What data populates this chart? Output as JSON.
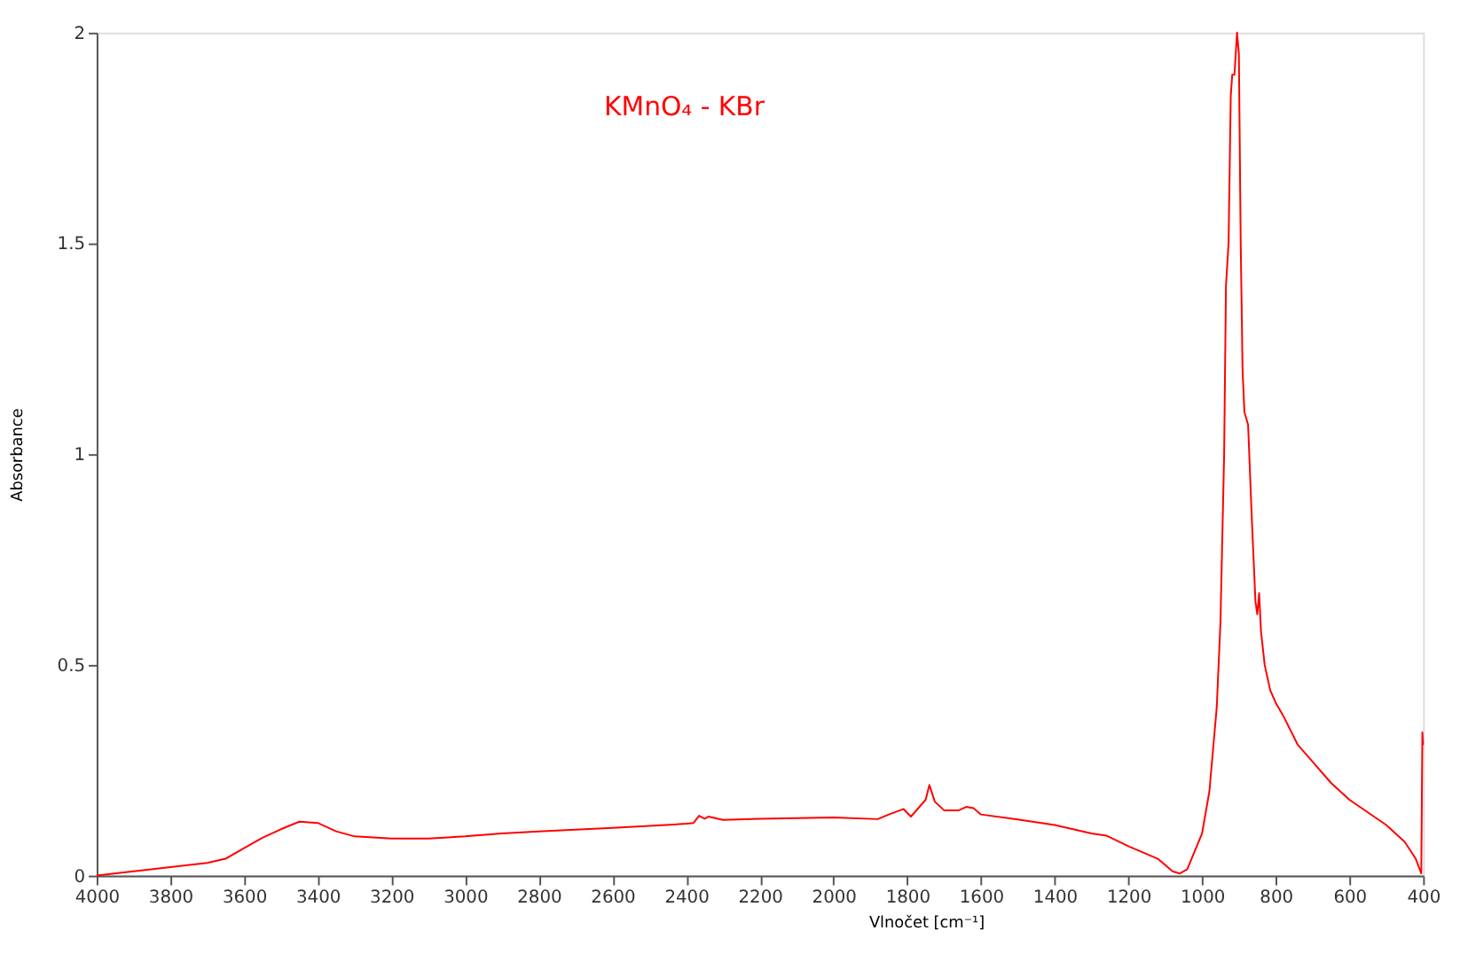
{
  "chart_data": {
    "type": "line",
    "title": "KMnO₄ - KBr",
    "xlabel": "Vlnočet [cm⁻¹]",
    "ylabel": "Absorbance",
    "xlim": [
      4000,
      400
    ],
    "xticks": [
      4000,
      3800,
      3600,
      3400,
      3200,
      3000,
      2800,
      2600,
      2400,
      2200,
      2000,
      1800,
      1600,
      1400,
      1200,
      1000,
      800,
      600,
      400
    ],
    "ylim": [
      0,
      2
    ],
    "yticks": [
      0,
      0.5,
      1,
      1.5,
      2
    ],
    "grid": false,
    "legend": false,
    "x": [
      4000,
      3800,
      3700,
      3650,
      3600,
      3550,
      3500,
      3450,
      3400,
      3350,
      3300,
      3200,
      3100,
      3000,
      2900,
      2800,
      2600,
      2400,
      2380,
      2365,
      2350,
      2340,
      2300,
      2200,
      2000,
      1880,
      1850,
      1810,
      1790,
      1770,
      1750,
      1740,
      1725,
      1700,
      1660,
      1640,
      1620,
      1600,
      1500,
      1400,
      1300,
      1260,
      1200,
      1120,
      1080,
      1060,
      1040,
      1000,
      980,
      960,
      950,
      940,
      935,
      928,
      922,
      918,
      912,
      905,
      900,
      895,
      890,
      885,
      875,
      865,
      855,
      850,
      845,
      840,
      830,
      815,
      800,
      780,
      740,
      700,
      650,
      600,
      550,
      500,
      450,
      420,
      405,
      402,
      400
    ],
    "series": [
      {
        "color": "#ff0000",
        "values": [
          0,
          0.02,
          0.03,
          0.04,
          0.065,
          0.09,
          0.11,
          0.128,
          0.125,
          0.105,
          0.093,
          0.088,
          0.088,
          0.093,
          0.1,
          0.105,
          0.113,
          0.123,
          0.125,
          0.142,
          0.135,
          0.14,
          0.132,
          0.135,
          0.138,
          0.134,
          0.145,
          0.158,
          0.14,
          0.16,
          0.18,
          0.215,
          0.175,
          0.155,
          0.155,
          0.163,
          0.16,
          0.145,
          0.133,
          0.12,
          0.1,
          0.095,
          0.07,
          0.04,
          0.01,
          0.005,
          0.015,
          0.1,
          0.2,
          0.4,
          0.6,
          1.0,
          1.4,
          1.5,
          1.85,
          1.9,
          1.9,
          2.0,
          1.95,
          1.5,
          1.2,
          1.1,
          1.07,
          0.85,
          0.65,
          0.62,
          0.67,
          0.58,
          0.5,
          0.44,
          0.41,
          0.38,
          0.31,
          0.27,
          0.22,
          0.18,
          0.15,
          0.12,
          0.08,
          0.04,
          0.005,
          0.34,
          0.31
        ]
      }
    ]
  }
}
